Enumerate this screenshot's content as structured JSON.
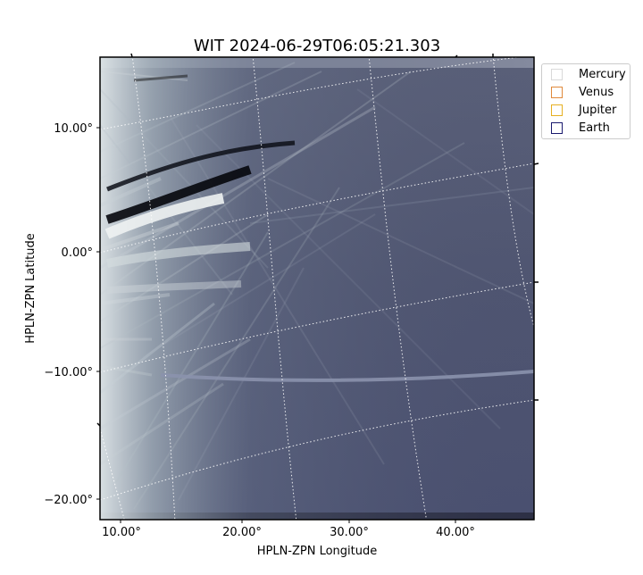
{
  "chart_data": {
    "type": "heatmap",
    "title": "WIT 2024-06-29T06:05:21.303",
    "xlabel": "HPLN-ZPN Longitude",
    "ylabel": "HPLN-ZPN Latitude",
    "x_ticks": [
      "10.00°",
      "20.00°",
      "30.00°",
      "40.00°"
    ],
    "y_ticks": [
      "10.00°",
      "0.00°",
      "−10.00°",
      "−20.00°"
    ],
    "xlim": [
      8,
      47
    ],
    "ylim": [
      -22,
      16
    ],
    "colormap": "bone",
    "grid": "dotted white coordinate grid",
    "legend_position": "upper-right, outside plot",
    "legend": [
      {
        "name": "Mercury",
        "color": "#d9d9d9"
      },
      {
        "name": "Venus",
        "color": "#e08a3c"
      },
      {
        "name": "Jupiter",
        "color": "#e6b022"
      },
      {
        "name": "Earth",
        "color": "#1a1a6e"
      }
    ]
  }
}
